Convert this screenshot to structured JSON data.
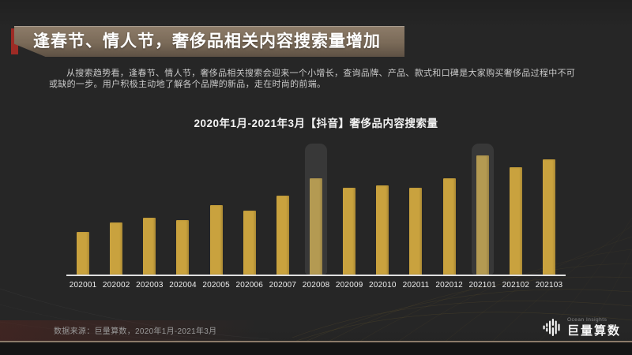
{
  "slide": {
    "title": "逢春节、情人节，奢侈品相关内容搜索量增加",
    "body_text": "从搜索趋势看，逢春节、情人节，奢侈品相关搜索会迎来一个小增长，查询品牌、产品、款式和口碑是大家购买奢侈品过程中不可或缺的一步。用户积极主动地了解各个品牌的新品，走在时尚的前端。",
    "source_note": "数据来源：巨量算数，2020年1月-2021年3月"
  },
  "logo": {
    "brand_en": "Ocean Insights",
    "brand_zh": "巨量算数"
  },
  "colors": {
    "background": "#262626",
    "accent_gold": "#C9A23E",
    "accent_gold_highlighted_bar": "#B49A52",
    "banner_brown_top": "#8D7C69",
    "banner_brown_bottom": "#5E5144",
    "accent_red": "#9E2B25",
    "highlight_band": "rgba(255,255,255,0.085)",
    "footer_line": "#8B7A69"
  },
  "chart_data": {
    "type": "bar",
    "title": "2020年1月-2021年3月【抖音】奢侈品内容搜索量",
    "categories": [
      "202001",
      "202002",
      "202003",
      "202004",
      "202005",
      "202006",
      "202007",
      "202008",
      "202009",
      "202010",
      "202011",
      "202012",
      "202101",
      "202102",
      "202103"
    ],
    "values": [
      36,
      44,
      48,
      46,
      58,
      54,
      66,
      81,
      73,
      75,
      73,
      81,
      100,
      90,
      97
    ],
    "highlighted_categories": [
      "202008",
      "202101"
    ],
    "xlabel": "",
    "ylabel": "",
    "ylim": [
      0,
      110
    ],
    "y_axis_visible": false,
    "grid": false,
    "legend": false,
    "note": "values are relative search index, max month 202101 = 100"
  }
}
